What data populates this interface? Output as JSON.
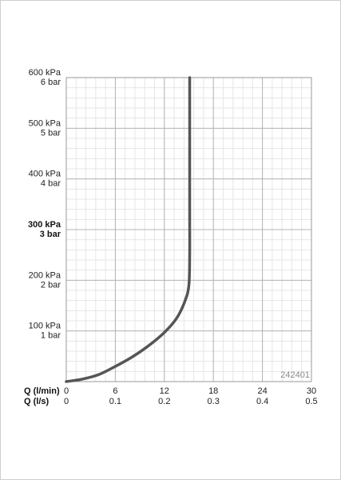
{
  "chart_data": {
    "type": "line",
    "x_unit_label": "Q (l/min)",
    "x2_unit_label": "Q (l/s)",
    "x_range": [
      0,
      30
    ],
    "y_range": [
      0,
      600
    ],
    "x_ticks": [
      {
        "value": 0,
        "label": "0",
        "label2": "0"
      },
      {
        "value": 6,
        "label": "6",
        "label2": "0.1"
      },
      {
        "value": 12,
        "label": "12",
        "label2": "0.2"
      },
      {
        "value": 18,
        "label": "18",
        "label2": "0.3"
      },
      {
        "value": 24,
        "label": "24",
        "label2": "0.4"
      },
      {
        "value": 30,
        "label": "30",
        "label2": "0.5"
      }
    ],
    "y_ticks": [
      {
        "value": 100,
        "label": "100 kPa",
        "label2": "1 bar",
        "emphasis": false
      },
      {
        "value": 200,
        "label": "200 kPa",
        "label2": "2 bar",
        "emphasis": false
      },
      {
        "value": 300,
        "label": "300 kPa",
        "label2": "3 bar",
        "emphasis": true
      },
      {
        "value": 400,
        "label": "400 kPa",
        "label2": "4 bar",
        "emphasis": false
      },
      {
        "value": 500,
        "label": "500 kPa",
        "label2": "5 bar",
        "emphasis": false
      },
      {
        "value": 600,
        "label": "600 kPa",
        "label2": "6 bar",
        "emphasis": false
      }
    ],
    "grid": true,
    "minor_grid_step_x": 1.2,
    "minor_grid_step_y": 20,
    "line_color": "#555555",
    "series": [
      {
        "points": [
          [
            0,
            0
          ],
          [
            2,
            5
          ],
          [
            4,
            14
          ],
          [
            6,
            30
          ],
          [
            8,
            48
          ],
          [
            10,
            70
          ],
          [
            12,
            97
          ],
          [
            13.5,
            125
          ],
          [
            14.5,
            158
          ],
          [
            15,
            190
          ],
          [
            15.1,
            250
          ],
          [
            15.1,
            320
          ],
          [
            15.1,
            400
          ],
          [
            15.1,
            500
          ],
          [
            15.1,
            600
          ]
        ]
      }
    ],
    "code": "242401"
  }
}
